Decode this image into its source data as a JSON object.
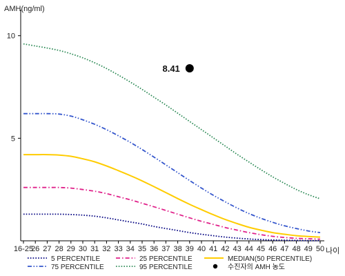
{
  "chart_data": {
    "type": "line",
    "ylabel": "AMH(ng/ml)",
    "xlabel": "나이",
    "ylim": [
      0,
      11
    ],
    "y_ticks": [
      5,
      10
    ],
    "categories": [
      "16-25",
      "26",
      "27",
      "28",
      "29",
      "30",
      "31",
      "32",
      "33",
      "34",
      "35",
      "36",
      "37",
      "38",
      "39",
      "40",
      "41",
      "42",
      "43",
      "44",
      "45",
      "46",
      "47",
      "48",
      "49",
      "50"
    ],
    "series": [
      {
        "name": "5 PERCENTILE",
        "color": "#000080",
        "dash": "dot",
        "values": [
          1.3,
          1.3,
          1.3,
          1.3,
          1.28,
          1.25,
          1.2,
          1.12,
          1.02,
          0.92,
          0.82,
          0.7,
          0.6,
          0.5,
          0.4,
          0.32,
          0.25,
          0.18,
          0.13,
          0.09,
          0.06,
          0.04,
          0.03,
          0.02,
          0.01,
          0.01
        ]
      },
      {
        "name": "25 PERCENTILE",
        "color": "#e0218a",
        "dash": "dashdot",
        "values": [
          2.6,
          2.6,
          2.6,
          2.6,
          2.57,
          2.5,
          2.42,
          2.3,
          2.15,
          2.0,
          1.83,
          1.66,
          1.48,
          1.3,
          1.12,
          0.95,
          0.8,
          0.65,
          0.52,
          0.4,
          0.3,
          0.22,
          0.16,
          0.12,
          0.1,
          0.08
        ]
      },
      {
        "name": "MEDIAN(50 PERCENTILE)",
        "color": "#ffcc00",
        "dash": "solid",
        "values": [
          4.2,
          4.2,
          4.2,
          4.18,
          4.12,
          4.0,
          3.85,
          3.65,
          3.42,
          3.18,
          2.92,
          2.64,
          2.35,
          2.06,
          1.78,
          1.52,
          1.27,
          1.04,
          0.84,
          0.66,
          0.52,
          0.4,
          0.32,
          0.25,
          0.21,
          0.18
        ]
      },
      {
        "name": "75 PERCENTILE",
        "color": "#3355cc",
        "dash": "dashdotdot",
        "values": [
          6.2,
          6.2,
          6.2,
          6.18,
          6.08,
          5.9,
          5.68,
          5.42,
          5.12,
          4.8,
          4.45,
          4.08,
          3.7,
          3.32,
          2.94,
          2.57,
          2.22,
          1.9,
          1.6,
          1.33,
          1.1,
          0.9,
          0.73,
          0.6,
          0.48,
          0.4
        ]
      },
      {
        "name": "95 PERCENTILE",
        "color": "#2e8b57",
        "dash": "dot",
        "values": [
          9.6,
          9.5,
          9.4,
          9.28,
          9.12,
          8.92,
          8.68,
          8.4,
          8.08,
          7.74,
          7.38,
          7.0,
          6.62,
          6.22,
          5.82,
          5.42,
          5.02,
          4.62,
          4.22,
          3.84,
          3.47,
          3.12,
          2.8,
          2.5,
          2.25,
          2.05
        ]
      }
    ],
    "points": [
      {
        "name": "수진자의 AMH 농도",
        "x": "39",
        "y": 8.41,
        "label": "8.41",
        "color": "#000000"
      }
    ],
    "legend": {
      "placement": "bottom",
      "items": [
        {
          "label": "5 PERCENTILE",
          "color": "#000080",
          "dash": "dot"
        },
        {
          "label": "25 PERCENTILE",
          "color": "#e0218a",
          "dash": "dashdot"
        },
        {
          "label": "MEDIAN(50 PERCENTILE)",
          "color": "#ffcc00",
          "dash": "solid"
        },
        {
          "label": "75 PERCENTILE",
          "color": "#3355cc",
          "dash": "dashdotdot"
        },
        {
          "label": "95 PERCENTILE",
          "color": "#2e8b57",
          "dash": "dot"
        },
        {
          "label": "수진자의 AMH 농도",
          "color": "#000000",
          "marker": "circle"
        }
      ]
    },
    "grid": false
  }
}
